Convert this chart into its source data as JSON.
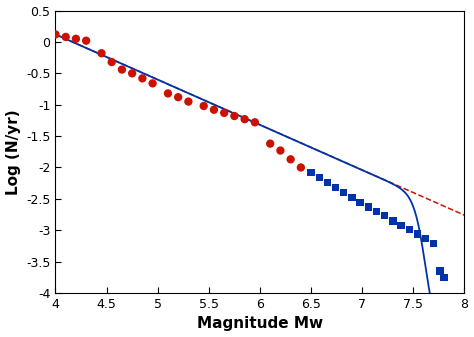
{
  "title": "",
  "xlabel": "Magnitude Mw",
  "ylabel": "Log (N/yr)",
  "xlim": [
    4.0,
    8.0
  ],
  "ylim": [
    -4.0,
    0.5
  ],
  "xticks": [
    4.0,
    4.5,
    5.0,
    5.5,
    6.0,
    6.5,
    7.0,
    7.5,
    8.0
  ],
  "yticks": [
    0.5,
    0,
    -0.5,
    -1.0,
    -1.5,
    -2.0,
    -2.5,
    -3.0,
    -3.5,
    -4.0
  ],
  "red_dots_x": [
    4.0,
    4.1,
    4.2,
    4.3,
    4.45,
    4.55,
    4.65,
    4.75,
    4.85,
    4.95,
    5.1,
    5.2,
    5.3,
    5.45,
    5.55,
    5.65,
    5.75,
    5.85,
    5.95,
    6.1,
    6.2,
    6.3,
    6.4
  ],
  "red_dots_y": [
    0.12,
    0.08,
    0.05,
    0.02,
    -0.18,
    -0.32,
    -0.44,
    -0.5,
    -0.58,
    -0.66,
    -0.82,
    -0.88,
    -0.95,
    -1.02,
    -1.08,
    -1.13,
    -1.18,
    -1.23,
    -1.28,
    -1.62,
    -1.73,
    -1.87,
    -2.0
  ],
  "blue_squares_x": [
    6.5,
    6.58,
    6.66,
    6.74,
    6.82,
    6.9,
    6.98,
    7.06,
    7.14,
    7.22,
    7.3,
    7.38,
    7.46,
    7.54,
    7.62,
    7.7,
    7.76,
    7.8
  ],
  "blue_squares_y": [
    -2.08,
    -2.16,
    -2.24,
    -2.32,
    -2.4,
    -2.48,
    -2.56,
    -2.63,
    -2.7,
    -2.77,
    -2.85,
    -2.92,
    -2.99,
    -3.06,
    -3.13,
    -3.21,
    -3.65,
    -3.75
  ],
  "red_line_slope": -0.72,
  "red_line_intercept": 3.0,
  "mmax": 7.82,
  "dot_color": "#cc1100",
  "square_color": "#0033aa",
  "red_line_color": "#cc1100",
  "blue_curve_color": "#0033aa",
  "xlabel_fontsize": 11,
  "ylabel_fontsize": 11,
  "tick_fontsize": 9,
  "figsize": [
    4.74,
    3.37
  ],
  "dpi": 100
}
